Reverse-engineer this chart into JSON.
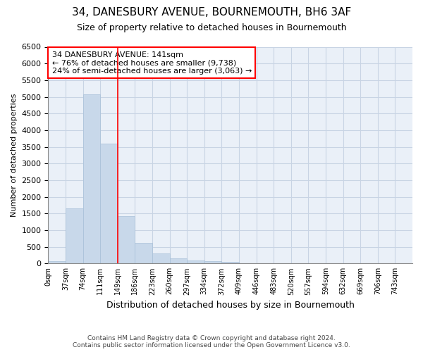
{
  "title_line1": "34, DANESBURY AVENUE, BOURNEMOUTH, BH6 3AF",
  "title_line2": "Size of property relative to detached houses in Bournemouth",
  "xlabel": "Distribution of detached houses by size in Bournemouth",
  "ylabel": "Number of detached properties",
  "footer_line1": "Contains HM Land Registry data © Crown copyright and database right 2024.",
  "footer_line2": "Contains public sector information licensed under the Open Government Licence v3.0.",
  "annotation_line1": "34 DANESBURY AVENUE: 141sqm",
  "annotation_line2": "← 76% of detached houses are smaller (9,738)",
  "annotation_line3": "24% of semi-detached houses are larger (3,063) →",
  "bar_color": "#c8d8ea",
  "bar_edge_color": "#a8c0d8",
  "vline_color": "red",
  "grid_color": "#c8d4e4",
  "bg_color": "#eaf0f8",
  "categories": [
    "0sqm",
    "37sqm",
    "74sqm",
    "111sqm",
    "149sqm",
    "186sqm",
    "223sqm",
    "260sqm",
    "297sqm",
    "334sqm",
    "372sqm",
    "409sqm",
    "446sqm",
    "483sqm",
    "520sqm",
    "557sqm",
    "594sqm",
    "632sqm",
    "669sqm",
    "706sqm",
    "743sqm"
  ],
  "values": [
    75,
    1650,
    5080,
    3600,
    1430,
    620,
    305,
    155,
    100,
    70,
    55,
    0,
    0,
    0,
    0,
    0,
    0,
    0,
    0,
    0,
    0
  ],
  "ylim": [
    0,
    6500
  ],
  "yticks": [
    0,
    500,
    1000,
    1500,
    2000,
    2500,
    3000,
    3500,
    4000,
    4500,
    5000,
    5500,
    6000,
    6500
  ],
  "vline_x": 4.0
}
